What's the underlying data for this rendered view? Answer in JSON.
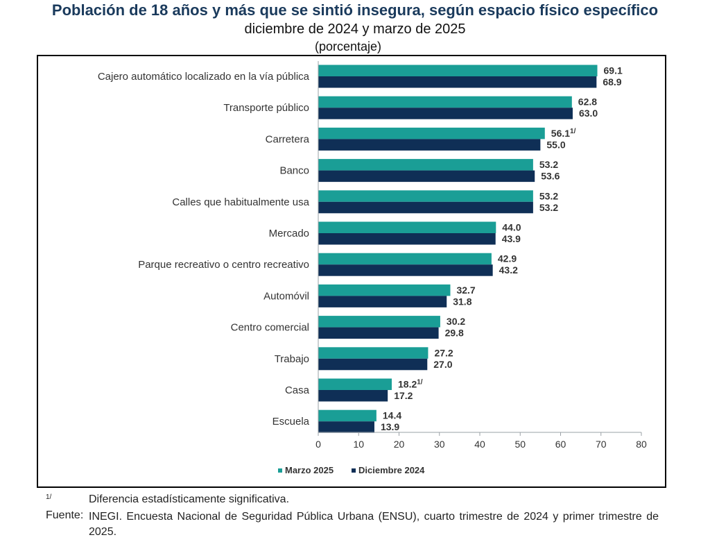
{
  "header": {
    "title": "Población de 18 años y más que se sintió insegura, según espacio físico específico",
    "subtitle": "diciembre de 2024 y marzo de 2025",
    "unit": "(porcentaje)"
  },
  "chart_data": {
    "type": "bar",
    "orientation": "horizontal",
    "categories": [
      "Cajero automático localizado en la vía pública",
      "Transporte público",
      "Carretera",
      "Banco",
      "Calles que habitualmente usa",
      "Mercado",
      "Parque recreativo o centro recreativo",
      "Automóvil",
      "Centro comercial",
      "Trabajo",
      "Casa",
      "Escuela"
    ],
    "series": [
      {
        "name": "Marzo 2025",
        "color": "#1a9e96",
        "values": [
          69.1,
          62.8,
          56.1,
          53.2,
          53.2,
          44.0,
          42.9,
          32.7,
          30.2,
          27.2,
          18.2,
          14.4
        ],
        "labels": [
          "69.1",
          "62.8",
          "56.1",
          "53.2",
          "53.2",
          "44.0",
          "42.9",
          "32.7",
          "30.2",
          "27.2",
          "18.2",
          "14.4"
        ]
      },
      {
        "name": "Diciembre 2024",
        "color": "#0f2f56",
        "values": [
          68.9,
          63.0,
          55.0,
          53.6,
          53.2,
          43.9,
          43.2,
          31.8,
          29.8,
          27.0,
          17.2,
          13.9
        ],
        "labels": [
          "68.9",
          "63.0",
          "55.0",
          "53.6",
          "53.2",
          "43.9",
          "43.2",
          "31.8",
          "29.8",
          "27.0",
          "17.2",
          "13.9"
        ]
      }
    ],
    "significance_marker": "1/",
    "significant_indices": [
      2,
      10
    ],
    "xlim": [
      0,
      80
    ],
    "xticks": [
      0,
      10,
      20,
      30,
      40,
      50,
      60,
      70,
      80
    ],
    "legend_position": "bottom",
    "grid": false
  },
  "footnote": {
    "marker": "1/",
    "text": "Diferencia estadísticamente significativa."
  },
  "source": {
    "label": "Fuente:",
    "text": "INEGI. Encuesta Nacional de Seguridad Pública Urbana (ENSU), cuarto trimestre de 2024 y primer trimestre de 2025."
  }
}
